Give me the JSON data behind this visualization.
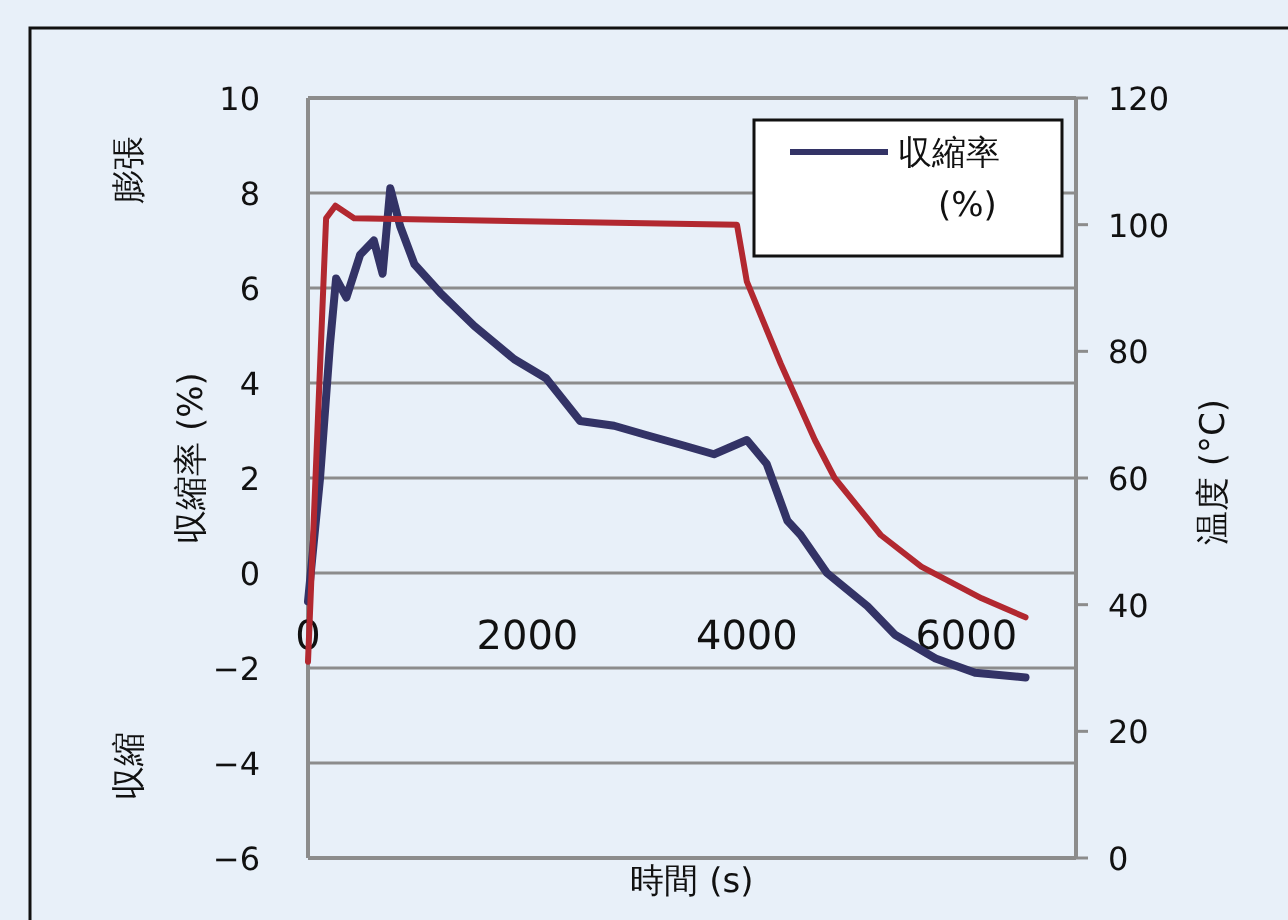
{
  "chart_data": {
    "type": "line",
    "xlabel": "時間 (s)",
    "ylabel": "収縮率 (%)",
    "y2label": "温度 (°C)",
    "annotations": [
      "膨張",
      "収縮"
    ],
    "xlim": [
      0,
      7000
    ],
    "xticks": [
      0,
      2000,
      4000,
      6000
    ],
    "ylim": [
      -6,
      10
    ],
    "yticks": [
      -6,
      -4,
      -2,
      0,
      2,
      4,
      6,
      8,
      10
    ],
    "y2lim": [
      0,
      120
    ],
    "y2ticks": [
      0,
      20,
      40,
      60,
      80,
      100,
      120
    ],
    "grid": "y",
    "legend": "top right",
    "marker": "none",
    "line_style": "solid",
    "series": [
      {
        "name": "収縮率 (%)",
        "color": "#333366",
        "x": [
          0,
          110,
          200,
          256,
          350,
          475,
          600,
          680,
          750,
          840,
          970,
          1205,
          1516,
          1880,
          2170,
          2480,
          2790,
          3090,
          3400,
          3700,
          4000,
          4180,
          4370,
          4490,
          4730,
          5100,
          5350,
          5720,
          6080,
          6540
        ],
        "values": [
          -0.6,
          2.0,
          4.8,
          6.2,
          5.8,
          6.7,
          7.0,
          6.3,
          8.1,
          7.3,
          6.5,
          5.9,
          5.2,
          4.5,
          4.1,
          3.2,
          3.1,
          2.9,
          2.7,
          2.5,
          2.8,
          2.3,
          1.1,
          0.8,
          0.0,
          -0.7,
          -1.3,
          -1.8,
          -2.1,
          -2.2
        ]
      },
      {
        "color": "#b22830",
        "axis": "y2",
        "x": [
          0,
          165,
          250,
          420,
          3910,
          4000,
          4310,
          4620,
          4800,
          5220,
          5590,
          6140,
          6540
        ],
        "values": [
          31,
          101,
          103,
          101,
          100,
          91,
          78,
          66,
          60,
          51,
          46,
          41,
          38
        ]
      }
    ]
  }
}
